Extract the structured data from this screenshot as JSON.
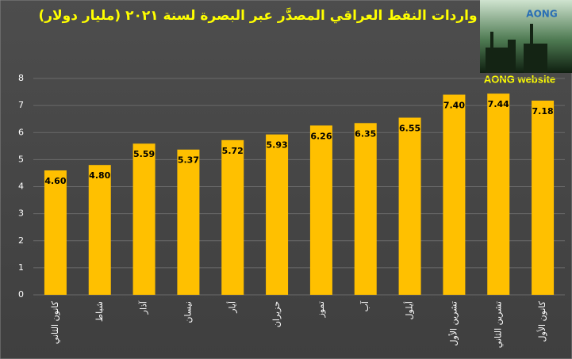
{
  "chart_data": {
    "type": "bar",
    "title": "واردات النفط العراقي المصدَّر عبر البصرة لسنة ٢٠٢١ (مليار دولار)",
    "logo_text": "AONG",
    "source": "AONG website",
    "categories": [
      "كانون الثاني",
      "شباط",
      "آذار",
      "نيسان",
      "أيار",
      "حزيران",
      "تموز",
      "آب",
      "أيلول",
      "تشرين الأول",
      "تشرين الثاني",
      "كانون الأول"
    ],
    "values": [
      4.6,
      4.8,
      5.59,
      5.37,
      5.72,
      5.93,
      6.26,
      6.35,
      6.55,
      7.4,
      7.44,
      7.18
    ],
    "value_labels": [
      "4.60",
      "4.80",
      "5.59",
      "5.37",
      "5.72",
      "5.93",
      "6.26",
      "6.35",
      "6.55",
      "7.40",
      "7.44",
      "7.18"
    ],
    "color": "#ffc000",
    "ylim": [
      0,
      8
    ],
    "yticks": [
      0,
      1,
      2,
      3,
      4,
      5,
      6,
      7,
      8
    ],
    "grid": true
  }
}
